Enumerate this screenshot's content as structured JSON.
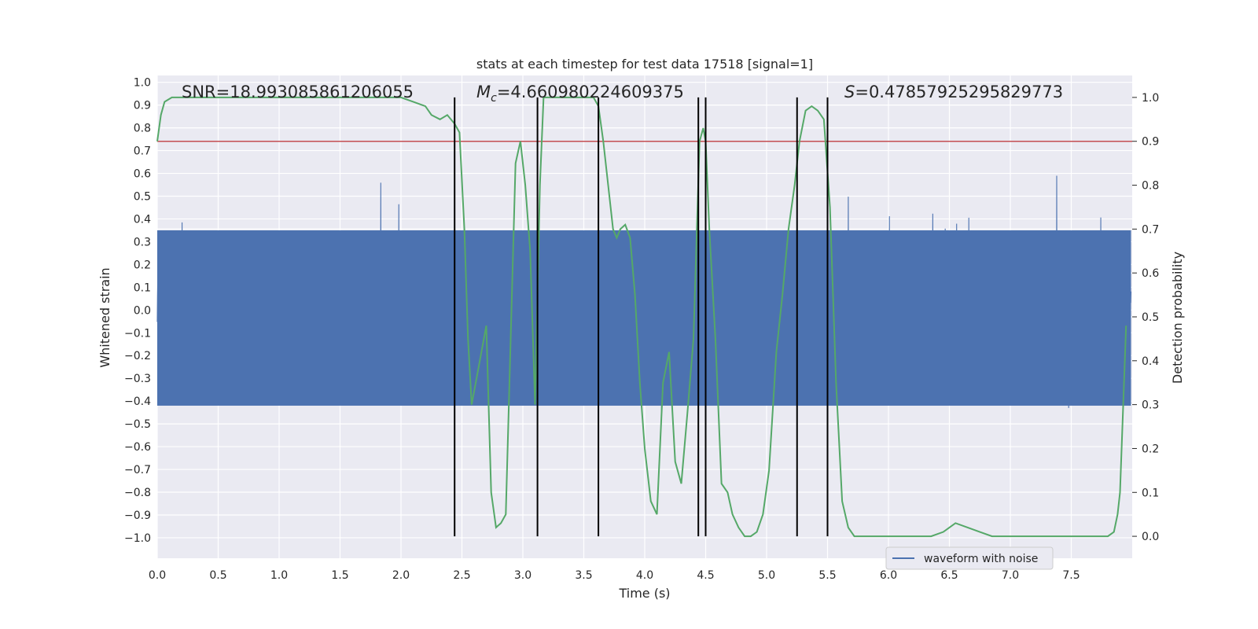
{
  "chart_data": {
    "type": "line",
    "title": "stats at each timestep for test data 17518 [signal=1]",
    "xlabel": "Time (s)",
    "ylabel_left": "Whitened strain",
    "ylabel_right": "Detection probability",
    "xlim": [
      0.0,
      8.0
    ],
    "ylim_left": [
      -1.09,
      1.03
    ],
    "ylim_right": [
      -0.05,
      1.05
    ],
    "x_ticks": [
      "0.0",
      "0.5",
      "1.0",
      "1.5",
      "2.0",
      "2.5",
      "3.0",
      "3.5",
      "4.0",
      "4.5",
      "5.0",
      "5.5",
      "6.0",
      "6.5",
      "7.0",
      "7.5"
    ],
    "y_ticks_left": [
      "1.0",
      "0.9",
      "0.8",
      "0.7",
      "0.6",
      "0.5",
      "0.4",
      "0.3",
      "0.2",
      "0.1",
      "0.0",
      "−0.1",
      "−0.2",
      "−0.3",
      "−0.4",
      "−0.5",
      "−0.6",
      "−0.7",
      "−0.8",
      "−0.9",
      "−1.0"
    ],
    "y_ticks_right": [
      "1.0",
      "0.9",
      "0.8",
      "0.7",
      "0.6",
      "0.5",
      "0.4",
      "0.3",
      "0.2",
      "0.1",
      "0.0"
    ],
    "annotations": {
      "snr": "SNR=18.993085861206055",
      "mc_symbol": "M",
      "mc_sub": "c",
      "mc_value": "=4.660980224609375",
      "s_symbol": "S",
      "s_value": "=0.47857925295829773"
    },
    "threshold": {
      "value": 0.9,
      "axis": "right",
      "color": "#c44e52"
    },
    "vertical_lines": {
      "x": [
        2.44,
        3.12,
        3.62,
        4.44,
        4.5,
        5.25,
        5.5
      ],
      "y_range_right": [
        0.0,
        1.0
      ],
      "color": "#000000"
    },
    "series": [
      {
        "name": "waveform with noise",
        "axis": "left",
        "color": "#4c72b0",
        "description": "dense whitened-strain noise samples, core band approx -0.42 to 0.35 with spikes up to ~0.82 and down to ~-1.0"
      },
      {
        "name": "detection probability",
        "axis": "right",
        "color": "#55a868",
        "x": [
          0.0,
          0.03,
          0.06,
          0.12,
          0.2,
          0.5,
          1.0,
          1.3,
          1.5,
          1.8,
          2.0,
          2.1,
          2.2,
          2.25,
          2.32,
          2.38,
          2.44,
          2.48,
          2.52,
          2.55,
          2.58,
          2.62,
          2.66,
          2.7,
          2.74,
          2.78,
          2.82,
          2.86,
          2.9,
          2.94,
          2.98,
          3.02,
          3.06,
          3.1,
          3.14,
          3.17,
          3.2,
          3.25,
          3.3,
          3.4,
          3.5,
          3.58,
          3.62,
          3.66,
          3.7,
          3.74,
          3.77,
          3.8,
          3.84,
          3.88,
          3.92,
          3.96,
          4.0,
          4.05,
          4.1,
          4.15,
          4.2,
          4.25,
          4.3,
          4.35,
          4.4,
          4.45,
          4.48,
          4.5,
          4.53,
          4.58,
          4.63,
          4.68,
          4.72,
          4.77,
          4.82,
          4.87,
          4.92,
          4.97,
          5.02,
          5.08,
          5.13,
          5.18,
          5.23,
          5.27,
          5.32,
          5.37,
          5.42,
          5.47,
          5.52,
          5.57,
          5.62,
          5.67,
          5.72,
          5.77,
          5.85,
          6.0,
          6.2,
          6.35,
          6.45,
          6.5,
          6.55,
          6.65,
          6.75,
          6.85,
          6.95,
          7.1,
          7.3,
          7.5,
          7.6,
          7.7,
          7.8,
          7.85,
          7.88,
          7.9,
          7.95
        ],
        "values": [
          0.9,
          0.96,
          0.99,
          1.0,
          1.0,
          1.0,
          1.0,
          1.0,
          1.0,
          1.0,
          1.0,
          0.99,
          0.98,
          0.96,
          0.95,
          0.96,
          0.94,
          0.92,
          0.7,
          0.45,
          0.3,
          0.36,
          0.42,
          0.48,
          0.1,
          0.02,
          0.03,
          0.05,
          0.45,
          0.85,
          0.9,
          0.8,
          0.65,
          0.3,
          0.8,
          1.0,
          1.0,
          1.0,
          1.0,
          1.0,
          1.0,
          1.0,
          0.98,
          0.9,
          0.8,
          0.7,
          0.68,
          0.7,
          0.71,
          0.68,
          0.55,
          0.35,
          0.2,
          0.08,
          0.05,
          0.35,
          0.42,
          0.17,
          0.12,
          0.28,
          0.45,
          0.9,
          0.93,
          0.9,
          0.7,
          0.45,
          0.12,
          0.1,
          0.05,
          0.02,
          0.0,
          0.0,
          0.01,
          0.05,
          0.15,
          0.42,
          0.55,
          0.7,
          0.8,
          0.9,
          0.97,
          0.98,
          0.97,
          0.95,
          0.75,
          0.35,
          0.08,
          0.02,
          0.0,
          0.0,
          0.0,
          0.0,
          0.0,
          0.0,
          0.01,
          0.02,
          0.03,
          0.02,
          0.01,
          0.0,
          0.0,
          0.0,
          0.0,
          0.0,
          0.0,
          0.0,
          0.0,
          0.01,
          0.05,
          0.1,
          0.48
        ]
      }
    ],
    "legend": {
      "position": "lower-right",
      "entries": [
        "waveform with noise"
      ]
    }
  }
}
